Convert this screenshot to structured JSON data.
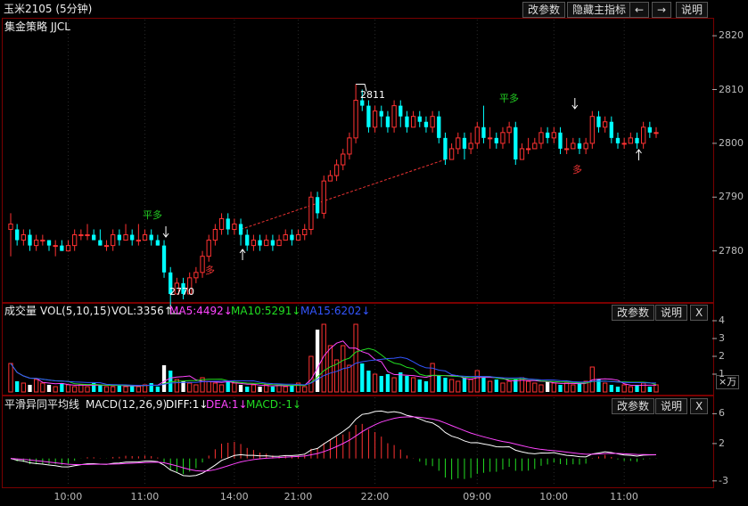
{
  "header": {
    "title": "玉米2105 (5分钟)",
    "buttons": [
      "改参数",
      "隐藏主指标",
      "←",
      "→",
      "说明"
    ]
  },
  "main_pane": {
    "indicator": "集金策略 JJCL",
    "high_label": "2811",
    "low_label": "2770",
    "signals": [
      {
        "text": "平多",
        "color": "#22cc22"
      },
      {
        "text": "多",
        "color": "#ee3333"
      },
      {
        "text": "平多",
        "color": "#22cc22"
      },
      {
        "text": "多",
        "color": "#ee3333"
      }
    ]
  },
  "vol_pane": {
    "name": "成交量",
    "params": "VOL(5,10,15)",
    "vol": "VOL:3356↑",
    "ma5": "MA5:4492↓",
    "ma10": "MA10:5291↓",
    "ma15": "MA15:6202↓",
    "buttons": [
      "改参数",
      "说明",
      "X"
    ],
    "unit": "×万",
    "colors": {
      "ma5": "#ff44ff",
      "ma10": "#22dd22",
      "ma15": "#3355ff"
    }
  },
  "macd_pane": {
    "name": "平滑异同平均线",
    "params": "MACD(12,26,9)",
    "diff": "DIFF:1↓",
    "dea": "DEA:1↓",
    "macd": "MACD:-1↓",
    "buttons": [
      "改参数",
      "说明",
      "X"
    ],
    "colors": {
      "diff": "#ffffff",
      "dea": "#ff44ff",
      "macd_neg": "#22dd22"
    }
  },
  "chart_data": [
    {
      "type": "candlestick",
      "title": "玉米2105 (5分钟)",
      "y_ticks": [
        2780,
        2790,
        2800,
        2810,
        2820
      ],
      "ylim": [
        2771,
        2823
      ],
      "x_ticks": [
        "10:00",
        "11:00",
        "14:00",
        "21:00",
        "22:00",
        "09:00",
        "10:00",
        "11:00"
      ],
      "high": 2811,
      "low": 2770,
      "candles": [
        [
          2784,
          2785,
          2779,
          2787
        ],
        [
          2784,
          2782,
          2781,
          2785
        ],
        [
          2782,
          2783,
          2781,
          2784
        ],
        [
          2783,
          2781,
          2780,
          2784
        ],
        [
          2781,
          2782,
          2780,
          2783
        ],
        [
          2782,
          2782,
          2781,
          2783
        ],
        [
          2782,
          2781,
          2780,
          2782
        ],
        [
          2781,
          2781,
          2779,
          2782
        ],
        [
          2781,
          2780,
          2780,
          2782
        ],
        [
          2780,
          2781,
          2780,
          2782
        ],
        [
          2781,
          2783,
          2780,
          2784
        ],
        [
          2783,
          2783,
          2782,
          2784
        ],
        [
          2783,
          2783,
          2782,
          2785
        ],
        [
          2783,
          2782,
          2782,
          2784
        ],
        [
          2782,
          2781,
          2781,
          2784
        ],
        [
          2781,
          2781,
          2780,
          2782
        ],
        [
          2781,
          2783,
          2780,
          2784
        ],
        [
          2783,
          2782,
          2781,
          2784
        ],
        [
          2782,
          2783,
          2782,
          2785
        ],
        [
          2783,
          2782,
          2781,
          2784
        ],
        [
          2782,
          2782,
          2781,
          2785
        ],
        [
          2782,
          2783,
          2782,
          2784
        ],
        [
          2783,
          2782,
          2781,
          2784
        ],
        [
          2782,
          2781,
          2781,
          2783
        ],
        [
          2781,
          2776,
          2775,
          2782
        ],
        [
          2776,
          2772,
          2770,
          2777
        ],
        [
          2772,
          2774,
          2772,
          2775
        ],
        [
          2774,
          2772,
          2771,
          2775
        ],
        [
          2772,
          2775,
          2772,
          2776
        ],
        [
          2775,
          2776,
          2774,
          2777
        ],
        [
          2776,
          2779,
          2775,
          2780
        ],
        [
          2779,
          2782,
          2778,
          2783
        ],
        [
          2782,
          2784,
          2781,
          2785
        ],
        [
          2784,
          2786,
          2783,
          2787
        ],
        [
          2786,
          2784,
          2783,
          2787
        ],
        [
          2784,
          2785,
          2783,
          2786
        ],
        [
          2785,
          2783,
          2781,
          2786
        ],
        [
          2783,
          2781,
          2780,
          2784
        ],
        [
          2781,
          2782,
          2780,
          2783
        ],
        [
          2782,
          2781,
          2780,
          2783
        ],
        [
          2781,
          2782,
          2781,
          2783
        ],
        [
          2782,
          2781,
          2780,
          2783
        ],
        [
          2781,
          2782,
          2781,
          2783
        ],
        [
          2782,
          2783,
          2782,
          2784
        ],
        [
          2783,
          2782,
          2781,
          2784
        ],
        [
          2782,
          2783,
          2782,
          2784
        ],
        [
          2783,
          2784,
          2782,
          2785
        ],
        [
          2784,
          2790,
          2783,
          2791
        ],
        [
          2790,
          2787,
          2786,
          2791
        ],
        [
          2787,
          2793,
          2786,
          2794
        ],
        [
          2793,
          2794,
          2793,
          2795
        ],
        [
          2794,
          2796,
          2793,
          2797
        ],
        [
          2796,
          2798,
          2795,
          2799
        ],
        [
          2798,
          2801,
          2797,
          2802
        ],
        [
          2801,
          2808,
          2800,
          2811
        ],
        [
          2808,
          2807,
          2806,
          2810
        ],
        [
          2807,
          2803,
          2802,
          2808
        ],
        [
          2803,
          2806,
          2802,
          2807
        ],
        [
          2806,
          2805,
          2803,
          2807
        ],
        [
          2805,
          2803,
          2802,
          2806
        ],
        [
          2803,
          2807,
          2802,
          2808
        ],
        [
          2807,
          2805,
          2803,
          2808
        ],
        [
          2805,
          2803,
          2802,
          2806
        ],
        [
          2803,
          2805,
          2803,
          2806
        ],
        [
          2805,
          2804,
          2803,
          2806
        ],
        [
          2804,
          2803,
          2802,
          2805
        ],
        [
          2803,
          2805,
          2802,
          2806
        ],
        [
          2805,
          2801,
          2800,
          2806
        ],
        [
          2801,
          2797,
          2796,
          2802
        ],
        [
          2797,
          2799,
          2797,
          2800
        ],
        [
          2799,
          2801,
          2798,
          2802
        ],
        [
          2801,
          2799,
          2797,
          2802
        ],
        [
          2799,
          2800,
          2798,
          2802
        ],
        [
          2800,
          2803,
          2799,
          2804
        ],
        [
          2803,
          2801,
          2800,
          2807
        ],
        [
          2801,
          2801,
          2799,
          2803
        ],
        [
          2801,
          2800,
          2799,
          2802
        ],
        [
          2800,
          2802,
          2799,
          2803
        ],
        [
          2802,
          2803,
          2800,
          2804
        ],
        [
          2803,
          2797,
          2796,
          2804
        ],
        [
          2797,
          2799,
          2797,
          2800
        ],
        [
          2799,
          2799,
          2798,
          2801
        ],
        [
          2799,
          2800,
          2799,
          2801
        ],
        [
          2800,
          2802,
          2799,
          2803
        ],
        [
          2802,
          2801,
          2800,
          2803
        ],
        [
          2801,
          2802,
          2800,
          2803
        ],
        [
          2802,
          2799,
          2798,
          2803
        ],
        [
          2799,
          2799,
          2798,
          2801
        ],
        [
          2799,
          2800,
          2799,
          2801
        ],
        [
          2800,
          2799,
          2798,
          2801
        ],
        [
          2799,
          2800,
          2798,
          2801
        ],
        [
          2800,
          2805,
          2799,
          2806
        ],
        [
          2805,
          2803,
          2802,
          2806
        ],
        [
          2803,
          2804,
          2802,
          2805
        ],
        [
          2804,
          2801,
          2800,
          2805
        ],
        [
          2801,
          2800,
          2799,
          2802
        ],
        [
          2800,
          2800,
          2799,
          2801
        ],
        [
          2800,
          2801,
          2800,
          2802
        ],
        [
          2801,
          2800,
          2799,
          2802
        ],
        [
          2800,
          2803,
          2799,
          2804
        ],
        [
          2803,
          2802,
          2801,
          2804
        ],
        [
          2802,
          2802,
          2801,
          2803
        ]
      ],
      "trend_line": [
        [
          36,
          2784
        ],
        [
          68,
          2797
        ]
      ]
    },
    {
      "type": "bar",
      "title": "VOL(5,10,15)",
      "y_ticks": [
        1,
        2,
        3,
        4
      ],
      "ylim": [
        0,
        4.2
      ],
      "values": [
        1.6,
        0.6,
        0.5,
        0.4,
        0.7,
        0.5,
        0.4,
        0.3,
        0.5,
        0.4,
        0.3,
        0.4,
        0.3,
        0.5,
        0.4,
        0.3,
        0.3,
        0.4,
        0.3,
        0.4,
        0.3,
        0.4,
        0.5,
        0.3,
        1.5,
        1.2,
        0.7,
        0.6,
        0.5,
        0.4,
        0.8,
        0.6,
        0.5,
        0.4,
        0.6,
        0.5,
        0.4,
        0.3,
        0.4,
        0.3,
        0.4,
        0.3,
        0.4,
        0.3,
        0.4,
        0.5,
        0.3,
        2.0,
        3.5,
        3.8,
        2.6,
        1.8,
        2.6,
        1.5,
        3.8,
        1.6,
        1.2,
        1.0,
        0.9,
        1.0,
        0.8,
        1.1,
        0.9,
        0.8,
        0.7,
        0.6,
        1.6,
        0.9,
        0.8,
        0.7,
        0.6,
        0.8,
        0.7,
        1.2,
        0.8,
        0.6,
        0.7,
        0.5,
        0.6,
        0.7,
        0.8,
        0.6,
        0.5,
        0.4,
        0.6,
        0.5,
        0.4,
        0.5,
        0.4,
        0.5,
        0.6,
        1.4,
        0.7,
        0.5,
        0.4,
        0.3,
        0.4,
        0.3,
        0.4,
        0.5,
        0.3,
        0.4
      ],
      "series": [
        {
          "name": "MA5",
          "values": []
        },
        {
          "name": "MA10",
          "values": []
        },
        {
          "name": "MA15",
          "values": []
        }
      ]
    },
    {
      "type": "bar",
      "title": "MACD(12,26,9)",
      "y_ticks": [
        -3,
        2,
        6
      ],
      "ylim": [
        -3.5,
        7
      ],
      "series": [
        {
          "name": "DIFF",
          "values": []
        },
        {
          "name": "DEA",
          "values": []
        }
      ]
    }
  ]
}
